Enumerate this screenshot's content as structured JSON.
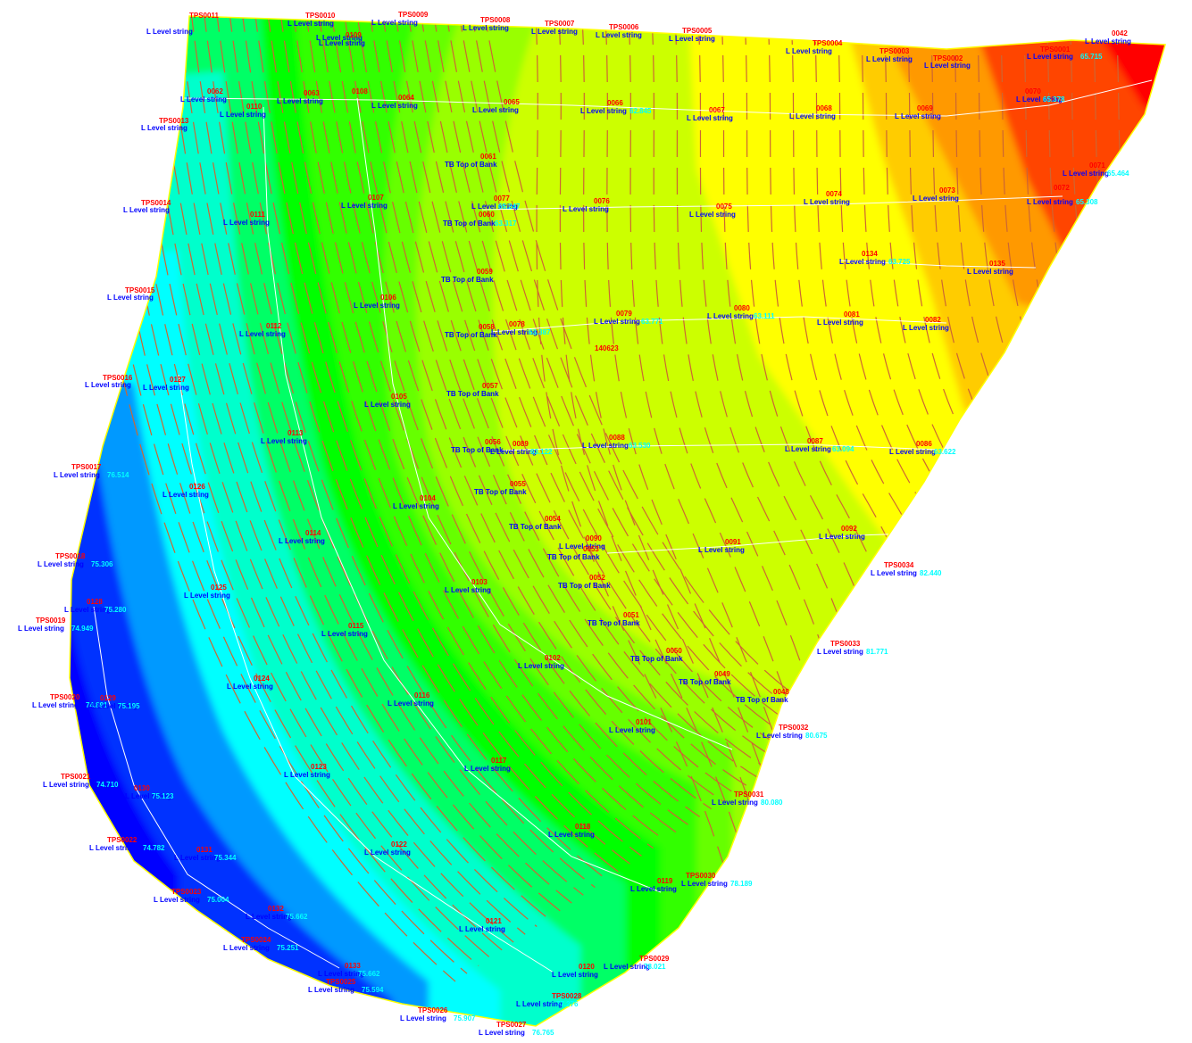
{
  "colors": {
    "band_sequence": [
      "#0000ff",
      "#0033ff",
      "#0099ff",
      "#00ffff",
      "#00ffcc",
      "#00ff66",
      "#00ff00",
      "#33ff00",
      "#66ff00",
      "#99ff00",
      "#ccff00",
      "#ffff00",
      "#ffcc00",
      "#ff9900",
      "#ff4400",
      "#ff0000"
    ],
    "boundary": "#ffff00",
    "contour": "#cc6633",
    "string_line": "#ffffff",
    "point_name": "#ff0000",
    "string_text": "#0000ff",
    "value_text": "#00ffff"
  },
  "boundary_points": [
    {
      "name": "TPS0011",
      "string": "L Level string",
      "value": ""
    },
    {
      "name": "TPS0010",
      "string": "L Level string",
      "value": ""
    },
    {
      "name": "TPS0009",
      "string": "L Level string",
      "value": ""
    },
    {
      "name": "TPS0008",
      "string": "L Level string",
      "value": ""
    },
    {
      "name": "TPS0007",
      "string": "L Level string",
      "value": ""
    },
    {
      "name": "TPS0006",
      "string": "L Level string",
      "value": ""
    },
    {
      "name": "TPS0005",
      "string": "L Level string",
      "value": ""
    },
    {
      "name": "TPS0004",
      "string": "L Level string",
      "value": ""
    },
    {
      "name": "TPS0003",
      "string": "L Level string",
      "value": ""
    },
    {
      "name": "TPS0002",
      "string": "L Level string",
      "value": ""
    },
    {
      "name": "TPS0001",
      "string": "L Level string",
      "value": "65.715"
    },
    {
      "name": "0042",
      "string": "L Level string",
      "value": ""
    },
    {
      "name": "TPS0013",
      "string": "L Level string",
      "value": ""
    },
    {
      "name": "TPS0014",
      "string": "L Level string",
      "value": ""
    },
    {
      "name": "TPS0015",
      "string": "L Level string",
      "value": ""
    },
    {
      "name": "TPS0016",
      "string": "L Level string",
      "value": ""
    },
    {
      "name": "TPS0017",
      "string": "L Level string",
      "value": "76.514"
    },
    {
      "name": "TPS0018",
      "string": "L Level string",
      "value": "75.306"
    },
    {
      "name": "TPS0019",
      "string": "L Level string",
      "value": "74.949"
    },
    {
      "name": "TPS0020",
      "string": "L Level string",
      "value": "74.891"
    },
    {
      "name": "TPS0021",
      "string": "L Level string",
      "value": "74.710"
    },
    {
      "name": "TPS0022",
      "string": "L Level string",
      "value": "74.782"
    },
    {
      "name": "TPS0023",
      "string": "L Level string",
      "value": "75.004"
    },
    {
      "name": "TPS0024",
      "string": "L Level string",
      "value": "75.251"
    },
    {
      "name": "TPS0025",
      "string": "L Level string",
      "value": "75.594"
    },
    {
      "name": "TPS0026",
      "string": "L Level string",
      "value": "75.907"
    },
    {
      "name": "TPS0027",
      "string": "L Level string",
      "value": "76.765"
    },
    {
      "name": "TPS0028",
      "string": "L Level string",
      "value": "77.276"
    },
    {
      "name": "TPS0029",
      "string": "L Level string",
      "value": "78.021"
    },
    {
      "name": "TPS0030",
      "string": "L Level string",
      "value": "78.189"
    },
    {
      "name": "TPS0031",
      "string": "L Level string",
      "value": "80.080"
    },
    {
      "name": "TPS0032",
      "string": "L Level string",
      "value": "80.675"
    },
    {
      "name": "TPS0033",
      "string": "L Level string",
      "value": "81.771"
    },
    {
      "name": "TPS0034",
      "string": "L Level string",
      "value": "82.440"
    }
  ],
  "interior_points": [
    {
      "name": "0062",
      "string": "L Level string",
      "value": ""
    },
    {
      "name": "0063",
      "string": "L Level string",
      "value": ""
    },
    {
      "name": "0064",
      "string": "L Level string",
      "value": ""
    },
    {
      "name": "0065",
      "string": "L Level string",
      "value": ""
    },
    {
      "name": "0066",
      "string": "L Level string",
      "value": "62.845"
    },
    {
      "name": "0067",
      "string": "L Level string",
      "value": ""
    },
    {
      "name": "0068",
      "string": "L Level string",
      "value": ""
    },
    {
      "name": "0069",
      "string": "L Level string",
      "value": ""
    },
    {
      "name": "0070",
      "string": "L Level string",
      "value": "65.378"
    },
    {
      "name": "0071",
      "string": "L Level string",
      "value": "65.464"
    },
    {
      "name": "0072",
      "string": "L Level string",
      "value": "65.308"
    },
    {
      "name": "0073",
      "string": "L Level string",
      "value": ""
    },
    {
      "name": "0074",
      "string": "L Level string",
      "value": ""
    },
    {
      "name": "0075",
      "string": "L Level string",
      "value": ""
    },
    {
      "name": "0076",
      "string": "L Level string",
      "value": ""
    },
    {
      "name": "0077",
      "string": "L Level string",
      "value": "65.247"
    },
    {
      "name": "0078",
      "string": "L Level string",
      "value": "63.387"
    },
    {
      "name": "0079",
      "string": "L Level string",
      "value": "63.771"
    },
    {
      "name": "0080",
      "string": "L Level string",
      "value": "63.111"
    },
    {
      "name": "0081",
      "string": "L Level string",
      "value": ""
    },
    {
      "name": "0082",
      "string": "L Level string",
      "value": ""
    },
    {
      "name": "0086",
      "string": "L Level string",
      "value": "63.622"
    },
    {
      "name": "0087",
      "string": "L Level string",
      "value": "63.094"
    },
    {
      "name": "0088",
      "string": "L Level string",
      "value": "63.530"
    },
    {
      "name": "0089",
      "string": "L Level string",
      "value": "63.122"
    },
    {
      "name": "0090",
      "string": "L Level string",
      "value": ""
    },
    {
      "name": "0091",
      "string": "L Level string",
      "value": ""
    },
    {
      "name": "0092",
      "string": "L Level string",
      "value": ""
    },
    {
      "name": "0101",
      "string": "L Level string",
      "value": ""
    },
    {
      "name": "0102",
      "string": "L Level string",
      "value": ""
    },
    {
      "name": "0103",
      "string": "L Level string",
      "value": ""
    },
    {
      "name": "0104",
      "string": "L Level string",
      "value": ""
    },
    {
      "name": "0105",
      "string": "L Level string",
      "value": ""
    },
    {
      "name": "0106",
      "string": "L Level string",
      "value": ""
    },
    {
      "name": "0107",
      "string": "L Level string",
      "value": ""
    },
    {
      "name": "0108",
      "string": "L Level string",
      "value": ""
    },
    {
      "name": "0109",
      "string": "L Level string",
      "value": ""
    },
    {
      "name": "0110",
      "string": "L Level string",
      "value": ""
    },
    {
      "name": "0111",
      "string": "L Level string",
      "value": ""
    },
    {
      "name": "0112",
      "string": "L Level string",
      "value": ""
    },
    {
      "name": "0113",
      "string": "L Level string",
      "value": ""
    },
    {
      "name": "0114",
      "string": "L Level string",
      "value": ""
    },
    {
      "name": "0115",
      "string": "L Level string",
      "value": ""
    },
    {
      "name": "0116",
      "string": "L Level string",
      "value": ""
    },
    {
      "name": "0117",
      "string": "L Level string",
      "value": ""
    },
    {
      "name": "0118",
      "string": "L Level string",
      "value": ""
    },
    {
      "name": "0119",
      "string": "L Level string",
      "value": ""
    },
    {
      "name": "0120",
      "string": "L Level string",
      "value": ""
    },
    {
      "name": "0121",
      "string": "L Level string",
      "value": ""
    },
    {
      "name": "0122",
      "string": "L Level string",
      "value": ""
    },
    {
      "name": "0123",
      "string": "L Level string",
      "value": ""
    },
    {
      "name": "0124",
      "string": "L Level string",
      "value": ""
    },
    {
      "name": "0125",
      "string": "L Level string",
      "value": ""
    },
    {
      "name": "0126",
      "string": "L Level string",
      "value": ""
    },
    {
      "name": "0127",
      "string": "L Level string",
      "value": ""
    },
    {
      "name": "0128",
      "string": "L Level string",
      "value": "75.280"
    },
    {
      "name": "0129",
      "string": "L Level string",
      "value": "75.195"
    },
    {
      "name": "0130",
      "string": "L Level string",
      "value": "75.123"
    },
    {
      "name": "0131",
      "string": "L Level string",
      "value": "75.344"
    },
    {
      "name": "0132",
      "string": "L Level string",
      "value": "75.662"
    },
    {
      "name": "0133",
      "string": "L Level string",
      "value": "75.662"
    },
    {
      "name": "0134",
      "string": "L Level string",
      "value": "63.725"
    },
    {
      "name": "0135",
      "string": "L Level string",
      "value": ""
    },
    {
      "name": "140623",
      "string": "",
      "value": ""
    }
  ],
  "top_of_bank_points": [
    {
      "name": "0061",
      "string": "TB Top of Bank",
      "value": ""
    },
    {
      "name": "0060",
      "string": "TB Top of Bank",
      "value": "63.317"
    },
    {
      "name": "0059",
      "string": "TB Top of Bank",
      "value": ""
    },
    {
      "name": "0058",
      "string": "TB Top of Bank",
      "value": ""
    },
    {
      "name": "0057",
      "string": "TB Top of Bank",
      "value": ""
    },
    {
      "name": "0056",
      "string": "TB Top of Bank",
      "value": ""
    },
    {
      "name": "0055",
      "string": "TB Top of Bank",
      "value": ""
    },
    {
      "name": "0054",
      "string": "TB Top of Bank",
      "value": ""
    },
    {
      "name": "0053",
      "string": "TB Top of Bank",
      "value": ""
    },
    {
      "name": "0052",
      "string": "TB Top of Bank",
      "value": ""
    },
    {
      "name": "0051",
      "string": "TB Top of Bank",
      "value": ""
    },
    {
      "name": "0050",
      "string": "TB Top of Bank",
      "value": ""
    },
    {
      "name": "0049",
      "string": "TB Top of Bank",
      "value": ""
    },
    {
      "name": "0048",
      "string": "TB Top of Bank",
      "value": ""
    }
  ]
}
